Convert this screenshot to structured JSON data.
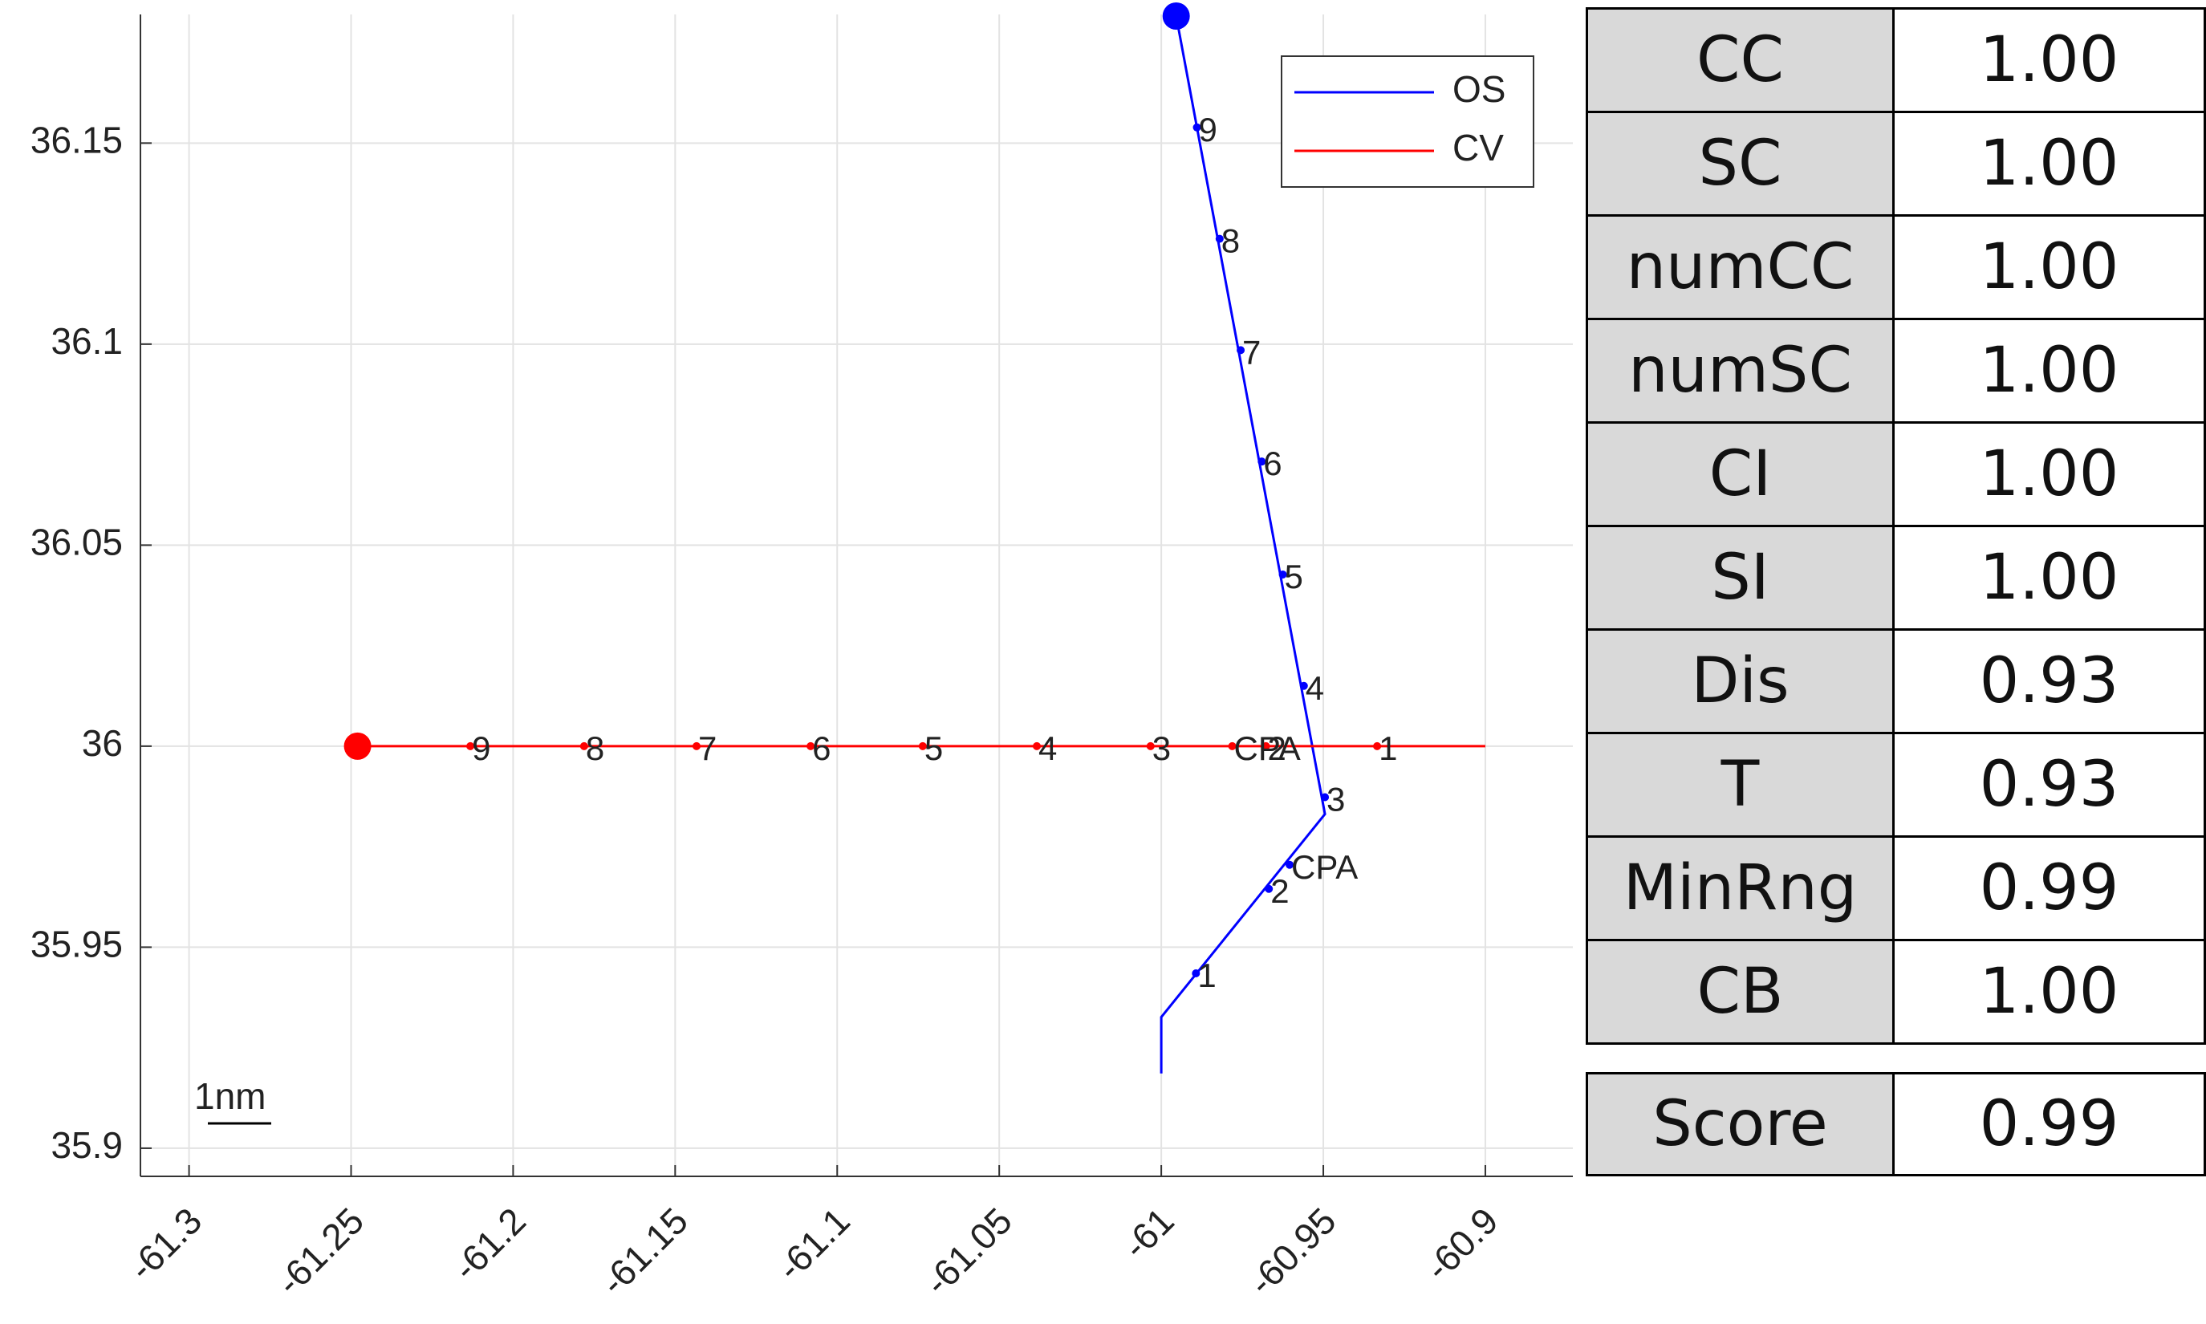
{
  "chart_data": {
    "type": "line",
    "xlim": [
      -61.315,
      -60.873
    ],
    "ylim": [
      35.893,
      36.182
    ],
    "xticks": [
      -61.3,
      -61.25,
      -61.2,
      -61.15,
      -61.1,
      -61.05,
      -61,
      -60.95,
      -60.9
    ],
    "yticks": [
      35.9,
      35.95,
      36,
      36.05,
      36.1,
      36.15
    ],
    "grid": true,
    "legend": "northeast",
    "scale_label": "1nm",
    "series": [
      {
        "name": "OS",
        "color": "#0000ff",
        "x": [
          -60.9954,
          -60.9495,
          -61.0,
          -61.0
        ],
        "y": [
          36.1816,
          35.9831,
          35.9326,
          35.9186
        ],
        "marker_labels": [
          "1",
          "2",
          "3",
          "4",
          "5",
          "6",
          "7",
          "8",
          "9",
          "CPA"
        ],
        "marker_x": [
          -60.9893,
          -60.9668,
          -60.9495,
          -60.956,
          -60.9625,
          -60.969,
          -60.9755,
          -60.982,
          -60.989,
          -60.9604
        ],
        "marker_y": [
          35.9435,
          35.9645,
          35.9873,
          36.015,
          36.0427,
          36.0708,
          36.0985,
          36.1262,
          36.1539,
          35.9705
        ]
      },
      {
        "name": "CV",
        "color": "#ff0000",
        "x": [
          -61.248,
          -60.9
        ],
        "y": [
          36.0,
          36.0
        ],
        "marker_labels": [
          "1",
          "2",
          "3",
          "4",
          "5",
          "6",
          "7",
          "8",
          "9",
          "CPA"
        ],
        "marker_x": [
          -60.9334,
          -60.9677,
          -61.0033,
          -61.0384,
          -61.0736,
          -61.1082,
          -61.1434,
          -61.1781,
          -61.2132,
          -60.9781
        ],
        "marker_y": [
          36.0,
          36.0,
          36.0,
          36.0,
          36.0,
          36.0,
          36.0,
          36.0,
          36.0,
          36.0
        ]
      }
    ]
  },
  "table": {
    "rows": [
      [
        "CC",
        "1.00"
      ],
      [
        "SC",
        "1.00"
      ],
      [
        "numCC",
        "1.00"
      ],
      [
        "numSC",
        "1.00"
      ],
      [
        "CI",
        "1.00"
      ],
      [
        "SI",
        "1.00"
      ],
      [
        "Dis",
        "0.93"
      ],
      [
        "T",
        "0.93"
      ],
      [
        "MinRng",
        "0.99"
      ],
      [
        "CB",
        "1.00"
      ]
    ],
    "total": [
      "Score",
      "0.99"
    ]
  }
}
